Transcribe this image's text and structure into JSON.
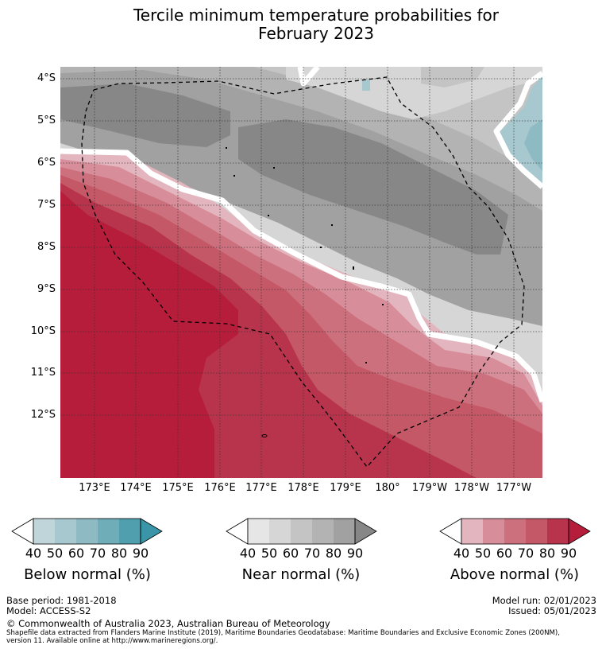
{
  "title": {
    "line1": "Tercile minimum temperature probabilities for",
    "line2": "February 2023"
  },
  "map": {
    "lat_labels": [
      "4°S",
      "5°S",
      "6°S",
      "7°S",
      "8°S",
      "9°S",
      "10°S",
      "11°S",
      "12°S"
    ],
    "lon_labels": [
      "173°E",
      "174°E",
      "175°E",
      "176°E",
      "177°E",
      "178°E",
      "179°E",
      "180°",
      "179°W",
      "178°W",
      "177°W"
    ],
    "legend_colors": {
      "below": [
        "#c0d5da",
        "#a8c8cf",
        "#8dbac3",
        "#6fadb9",
        "#4f9fae",
        "#3a95a8"
      ],
      "near": [
        "#e6e6e6",
        "#d6d6d6",
        "#c4c4c4",
        "#b3b3b3",
        "#a1a1a1",
        "#878787"
      ],
      "above": [
        "#e3b6bf",
        "#d88e9a",
        "#cd707e",
        "#c45866",
        "#b8344c",
        "#b51d3b"
      ]
    }
  },
  "colorbars": [
    {
      "label": "Below normal (%)",
      "ticks": [
        "40",
        "50",
        "60",
        "70",
        "80",
        "90"
      ]
    },
    {
      "label": "Near normal (%)",
      "ticks": [
        "40",
        "50",
        "60",
        "70",
        "80",
        "90"
      ]
    },
    {
      "label": "Above normal (%)",
      "ticks": [
        "40",
        "50",
        "60",
        "70",
        "80",
        "90"
      ]
    }
  ],
  "footer": {
    "base_period": "Base period: 1981-2018",
    "model": "Model: ACCESS-S2",
    "model_run": "Model run: 02/01/2023",
    "issued": "Issued: 05/01/2023",
    "copyright": "© Commonwealth of Australia 2023, Australian Bureau of Meteorology",
    "shapefile_line1": "Shapefile data extracted from Flanders Marine Institute (2019), Maritime Boundaries Geodatabase: Maritime Boundaries and Exclusive Economic Zones (200NM),",
    "shapefile_line2": "version 11. Available online at http://www.marineregions.org/."
  }
}
